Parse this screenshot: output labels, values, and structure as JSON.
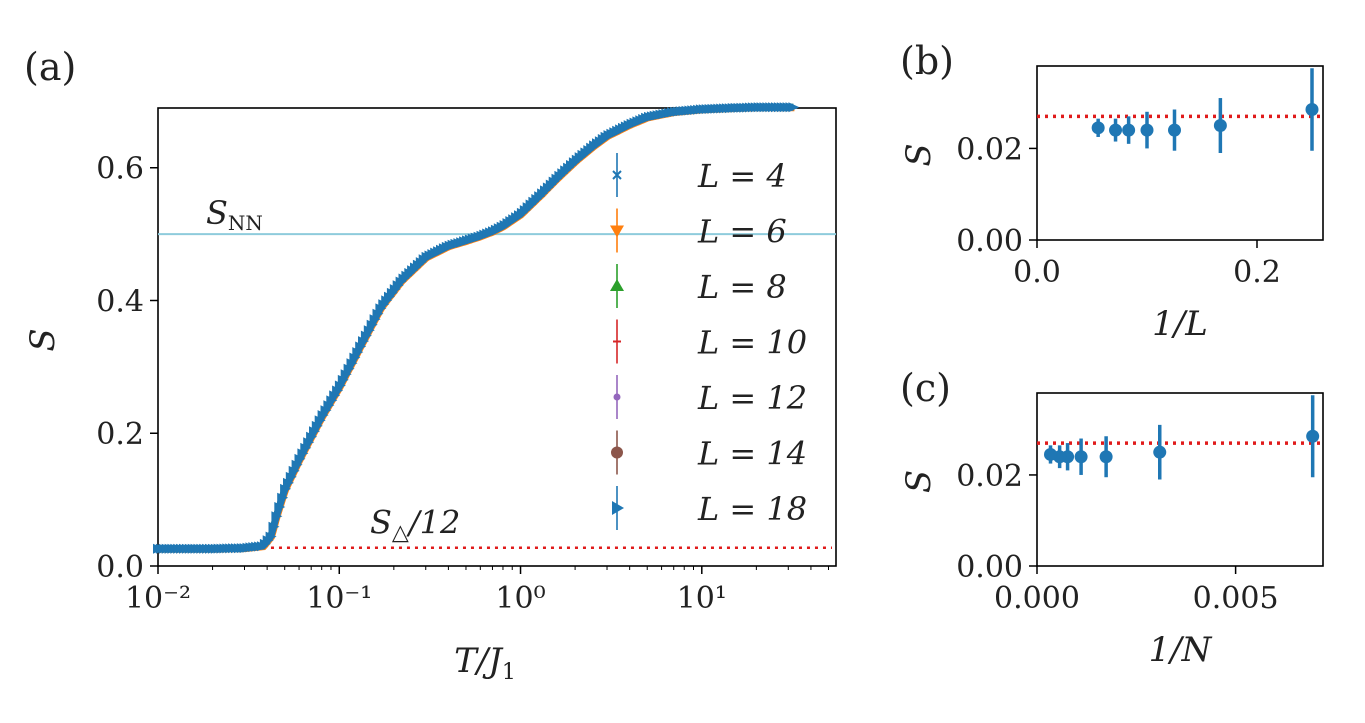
{
  "chart_data": [
    {
      "panel": "(a)",
      "type": "scatter",
      "xscale": "log",
      "xlabel": "T/J₁",
      "ylabel": "S",
      "xlim": [
        0.01,
        55
      ],
      "ylim": [
        0.0,
        0.69
      ],
      "xticks": [
        {
          "value": 0.01,
          "label": "10⁻²"
        },
        {
          "value": 0.1,
          "label": "10⁻¹"
        },
        {
          "value": 1,
          "label": "10⁰"
        },
        {
          "value": 10,
          "label": "10¹"
        }
      ],
      "yticks": [
        {
          "value": 0.0,
          "label": "0.0"
        },
        {
          "value": 0.2,
          "label": "0.2"
        },
        {
          "value": 0.4,
          "label": "0.4"
        },
        {
          "value": 0.6,
          "label": "0.6"
        }
      ],
      "curve": {
        "x": [
          0.01,
          0.02,
          0.03,
          0.038,
          0.042,
          0.045,
          0.05,
          0.06,
          0.07,
          0.08,
          0.1,
          0.13,
          0.17,
          0.22,
          0.3,
          0.4,
          0.5,
          0.6,
          0.7,
          0.8,
          1.0,
          1.3,
          1.6,
          2.0,
          2.5,
          3.0,
          4.0,
          5.0,
          7.0,
          10.0,
          15.0,
          20.0,
          32.0
        ],
        "y": [
          0.026,
          0.026,
          0.027,
          0.03,
          0.045,
          0.075,
          0.115,
          0.16,
          0.195,
          0.225,
          0.27,
          0.33,
          0.39,
          0.43,
          0.465,
          0.482,
          0.49,
          0.497,
          0.504,
          0.512,
          0.53,
          0.56,
          0.585,
          0.61,
          0.632,
          0.648,
          0.665,
          0.676,
          0.684,
          0.688,
          0.69,
          0.691,
          0.691
        ]
      },
      "hline_NN": {
        "value": 0.5,
        "label": "S_NN"
      },
      "hline_triangle": {
        "value": 0.0275,
        "xstart": 0.042,
        "label": "S_△/12"
      },
      "series": [
        {
          "name": "L = 4",
          "color": "#1f77b4",
          "marker": "x"
        },
        {
          "name": "L = 6",
          "color": "#ff7f0e",
          "marker": "tri_down"
        },
        {
          "name": "L = 8",
          "color": "#2ca02c",
          "marker": "tri_up"
        },
        {
          "name": "L = 10",
          "color": "#d62728",
          "marker": "plus"
        },
        {
          "name": "L = 12",
          "color": "#9467bd",
          "marker": "dot"
        },
        {
          "name": "L = 14",
          "color": "#8c564b",
          "marker": "circle"
        },
        {
          "name": "L = 18",
          "color": "#1f77b4",
          "marker": "tri_right"
        }
      ],
      "legend": "right"
    },
    {
      "panel": "(b)",
      "type": "scatter",
      "xlabel": "1/L",
      "ylabel": "S",
      "xlim": [
        0.0,
        0.26
      ],
      "ylim": [
        0.0,
        0.038
      ],
      "xticks": [
        {
          "value": 0.0,
          "label": "0.0"
        },
        {
          "value": 0.2,
          "label": "0.2"
        }
      ],
      "yticks": [
        {
          "value": 0.0,
          "label": "0.00"
        },
        {
          "value": 0.02,
          "label": "0.02"
        }
      ],
      "reference": 0.027,
      "points": [
        {
          "x": 0.25,
          "y": 0.0285,
          "err": 0.009
        },
        {
          "x": 0.1667,
          "y": 0.025,
          "err": 0.006
        },
        {
          "x": 0.125,
          "y": 0.024,
          "err": 0.0045
        },
        {
          "x": 0.1,
          "y": 0.024,
          "err": 0.004
        },
        {
          "x": 0.0833,
          "y": 0.024,
          "err": 0.003
        },
        {
          "x": 0.0714,
          "y": 0.024,
          "err": 0.0025
        },
        {
          "x": 0.0556,
          "y": 0.0245,
          "err": 0.002
        }
      ]
    },
    {
      "panel": "(c)",
      "type": "scatter",
      "xlabel": "1/N",
      "ylabel": "S",
      "xlim": [
        0.0,
        0.0072
      ],
      "ylim": [
        0.0,
        0.038
      ],
      "xticks": [
        {
          "value": 0.0,
          "label": "0.000"
        },
        {
          "value": 0.005,
          "label": "0.005"
        }
      ],
      "yticks": [
        {
          "value": 0.0,
          "label": "0.00"
        },
        {
          "value": 0.02,
          "label": "0.02"
        }
      ],
      "reference": 0.027,
      "points": [
        {
          "x": 0.00694,
          "y": 0.0285,
          "err": 0.009
        },
        {
          "x": 0.00309,
          "y": 0.025,
          "err": 0.006
        },
        {
          "x": 0.00174,
          "y": 0.024,
          "err": 0.0045
        },
        {
          "x": 0.00111,
          "y": 0.024,
          "err": 0.004
        },
        {
          "x": 0.00077,
          "y": 0.024,
          "err": 0.003
        },
        {
          "x": 0.00057,
          "y": 0.024,
          "err": 0.0025
        },
        {
          "x": 0.00034,
          "y": 0.0245,
          "err": 0.002
        }
      ]
    }
  ]
}
